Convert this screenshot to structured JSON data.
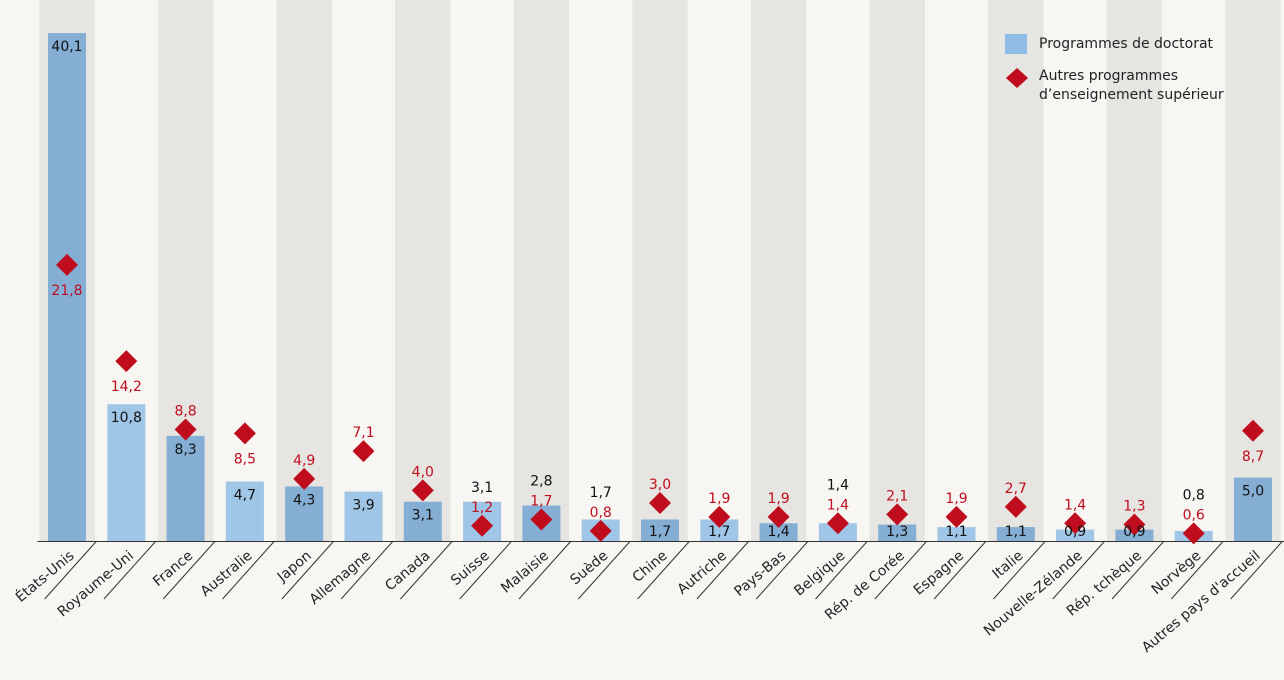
{
  "chart_data": {
    "type": "bar",
    "categories": [
      "États-Unis",
      "Royaume-Uni",
      "France",
      "Australie",
      "Japon",
      "Allemagne",
      "Canada",
      "Suisse",
      "Malaisie",
      "Suède",
      "Chine",
      "Autriche",
      "Pays-Bas",
      "Belgique",
      "Rép. de Corée",
      "Espagne",
      "Italie",
      "Nouvelle-Zélande",
      "Rép. tchèque",
      "Norvège",
      "Autres pays d'accueil"
    ],
    "series": [
      {
        "name": "Programmes de doctorat",
        "color": "#8fbde5",
        "marker": "bar",
        "values": [
          40.1,
          10.8,
          8.3,
          4.7,
          4.3,
          3.9,
          3.1,
          3.1,
          2.8,
          1.7,
          1.7,
          1.7,
          1.4,
          1.4,
          1.3,
          1.1,
          1.1,
          0.9,
          0.9,
          0.8,
          5.0
        ],
        "value_labels": [
          "40,1",
          "10,8",
          "8,3",
          "4,7",
          "4,3",
          "3,9",
          "3,1",
          "3,1",
          "2,8",
          "1,7",
          "1,7",
          "1,7",
          "1,4",
          "1,4",
          "1,3",
          "1,1",
          "1,1",
          "0,9",
          "0,9",
          "0,8",
          "5,0"
        ]
      },
      {
        "name": "Autres programmes d’enseignement supérieur",
        "color": "#c00d1e",
        "marker": "diamond",
        "values": [
          21.8,
          14.2,
          8.8,
          8.5,
          4.9,
          7.1,
          4.0,
          1.2,
          1.7,
          0.8,
          3.0,
          1.9,
          1.9,
          1.4,
          2.1,
          1.9,
          2.7,
          1.4,
          1.3,
          0.6,
          8.7
        ],
        "value_labels": [
          "21,8",
          "14,2",
          "8,8",
          "8,5",
          "4,9",
          "7,1",
          "4,0",
          "1,2",
          "1,7",
          "0,8",
          "3,0",
          "1,9",
          "1,9",
          "1,4",
          "2,1",
          "1,9",
          "2,7",
          "1,4",
          "1,3",
          "0,6",
          "8,7"
        ]
      }
    ],
    "ylim": [
      0,
      42
    ]
  }
}
